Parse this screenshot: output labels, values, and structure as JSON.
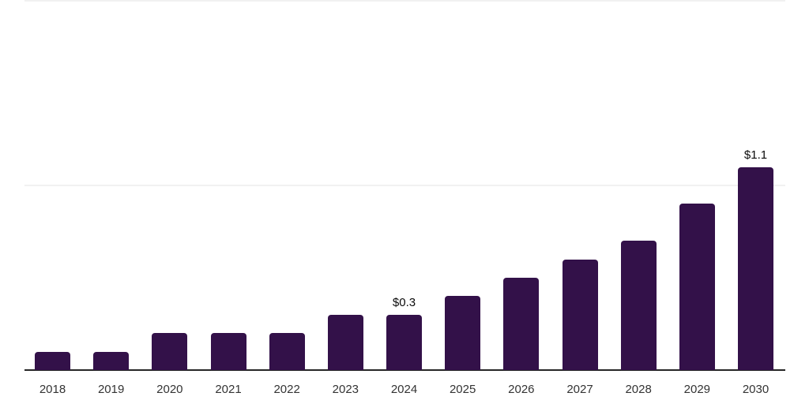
{
  "chart_data": {
    "type": "bar",
    "title": "",
    "xlabel": "",
    "ylabel": "",
    "categories": [
      "2018",
      "2019",
      "2020",
      "2021",
      "2022",
      "2023",
      "2024",
      "2025",
      "2026",
      "2027",
      "2028",
      "2029",
      "2030"
    ],
    "values": [
      0.1,
      0.1,
      0.2,
      0.2,
      0.2,
      0.3,
      0.3,
      0.4,
      0.5,
      0.6,
      0.7,
      0.9,
      1.1
    ],
    "data_labels": {
      "2024": "$0.3",
      "2030": "$1.1"
    },
    "ylim": [
      0,
      2.0
    ],
    "gridlines": [
      1.0,
      2.0
    ],
    "grid": "horizontal-only",
    "legend": "none",
    "bar_color": "#331149",
    "axis_line_color": "#262626",
    "gridline_color": "#f1f1f1",
    "value_label_color": "#0a0a0a",
    "tick_label_color": "#333333",
    "background_color": "#ffffff"
  }
}
